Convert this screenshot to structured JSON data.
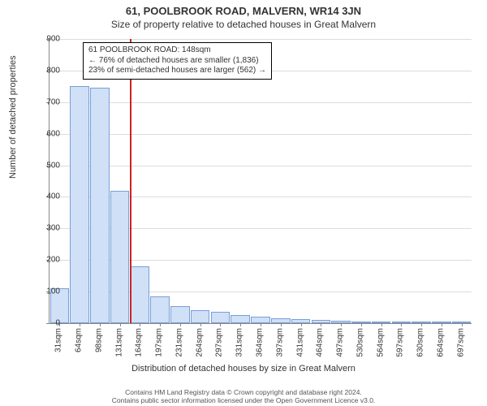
{
  "title": "61, POOLBROOK ROAD, MALVERN, WR14 3JN",
  "subtitle": "Size of property relative to detached houses in Great Malvern",
  "ylabel": "Number of detached properties",
  "xlabel": "Distribution of detached houses by size in Great Malvern",
  "chart": {
    "type": "histogram",
    "background_color": "#ffffff",
    "grid_color": "#dcdcdc",
    "axis_color": "#888888",
    "bar_fill": "#cfe0f7",
    "bar_border": "#7a9fd6",
    "refline_color": "#cc2222",
    "ylim": [
      0,
      900
    ],
    "ytick_step": 100,
    "categories": [
      "31sqm",
      "64sqm",
      "98sqm",
      "131sqm",
      "164sqm",
      "197sqm",
      "231sqm",
      "264sqm",
      "297sqm",
      "331sqm",
      "364sqm",
      "397sqm",
      "431sqm",
      "464sqm",
      "497sqm",
      "530sqm",
      "564sqm",
      "597sqm",
      "630sqm",
      "664sqm",
      "697sqm"
    ],
    "values": [
      110,
      750,
      745,
      420,
      180,
      85,
      55,
      40,
      35,
      25,
      20,
      15,
      12,
      10,
      8,
      2,
      2,
      1,
      1,
      1,
      1
    ],
    "refline_value": 148,
    "bar_width": 0.95,
    "label_fontsize": 10,
    "axis_label_fontsize": 11
  },
  "annotation": {
    "line1": "61 POOLBROOK ROAD: 148sqm",
    "line2": "← 76% of detached houses are smaller (1,836)",
    "line3": "23% of semi-detached houses are larger (562) →"
  },
  "footer": {
    "line1": "Contains HM Land Registry data © Crown copyright and database right 2024.",
    "line2": "Contains public sector information licensed under the Open Government Licence v3.0."
  }
}
